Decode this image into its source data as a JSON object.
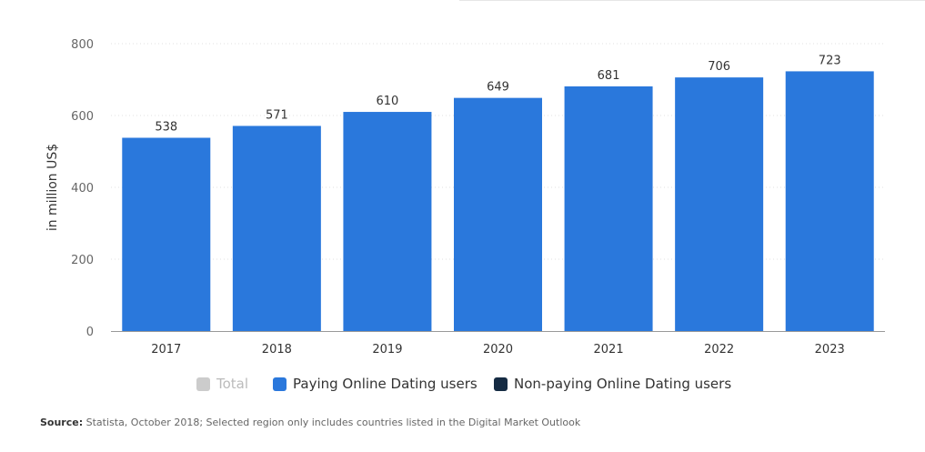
{
  "chart_data": {
    "type": "bar",
    "categories": [
      "2017",
      "2018",
      "2019",
      "2020",
      "2021",
      "2022",
      "2023"
    ],
    "values": [
      538,
      571,
      610,
      649,
      681,
      706,
      723
    ],
    "series_name": "Paying Online Dating users",
    "ylabel": "in million US$",
    "ylim": [
      0,
      800
    ],
    "yticks": [
      "0",
      "200",
      "400",
      "600",
      "800"
    ],
    "grid": true,
    "bar_color": "#2a78dc",
    "legend_position": "bottom"
  },
  "legend": {
    "items": [
      {
        "label": "Total",
        "color": "#cccccc"
      },
      {
        "label": "Paying Online Dating users",
        "color": "#2a78dc"
      },
      {
        "label": "Non-paying Online Dating users",
        "color": "#152b43"
      }
    ]
  },
  "source": {
    "label": "Source:",
    "text": " Statista, October 2018; Selected region only includes countries listed in the Digital Market Outlook"
  }
}
